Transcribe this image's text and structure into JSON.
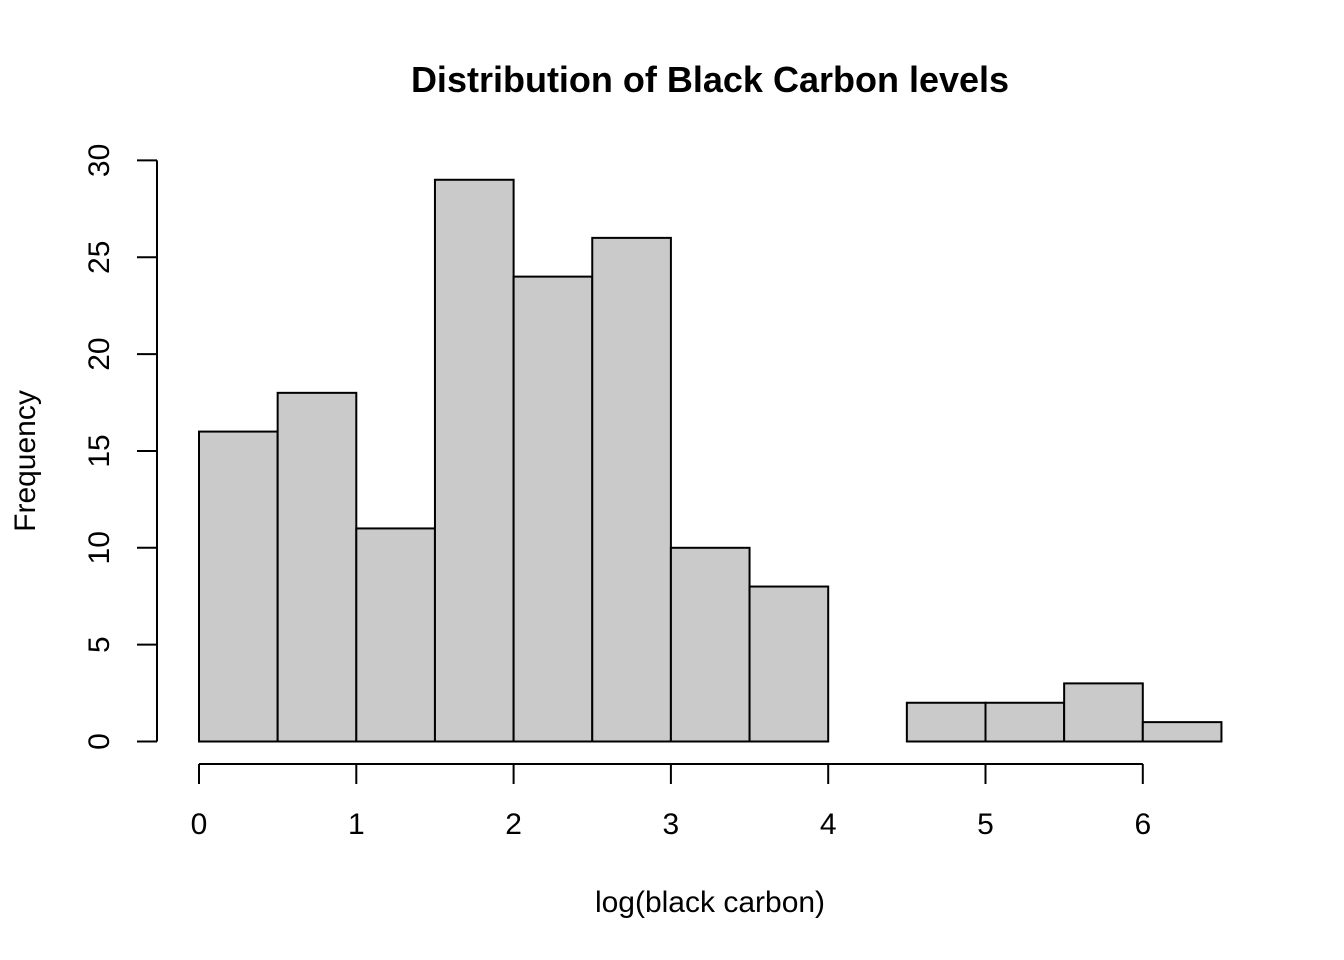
{
  "chart_data": {
    "type": "bar",
    "title": "Distribution of Black Carbon levels",
    "xlabel": "log(black carbon)",
    "ylabel": "Frequency",
    "bins": [
      {
        "start": 0.0,
        "end": 0.5,
        "count": 16
      },
      {
        "start": 0.5,
        "end": 1.0,
        "count": 18
      },
      {
        "start": 1.0,
        "end": 1.5,
        "count": 11
      },
      {
        "start": 1.5,
        "end": 2.0,
        "count": 29
      },
      {
        "start": 2.0,
        "end": 2.5,
        "count": 24
      },
      {
        "start": 2.5,
        "end": 3.0,
        "count": 26
      },
      {
        "start": 3.0,
        "end": 3.5,
        "count": 10
      },
      {
        "start": 3.5,
        "end": 4.0,
        "count": 8
      },
      {
        "start": 4.0,
        "end": 4.5,
        "count": 0
      },
      {
        "start": 4.5,
        "end": 5.0,
        "count": 2
      },
      {
        "start": 5.0,
        "end": 5.5,
        "count": 2
      },
      {
        "start": 5.5,
        "end": 6.0,
        "count": 3
      },
      {
        "start": 6.0,
        "end": 6.5,
        "count": 1
      }
    ],
    "xlim": [
      0,
      6.5
    ],
    "ylim": [
      0,
      30
    ],
    "xticks": [
      "0",
      "1",
      "2",
      "3",
      "4",
      "5",
      "6"
    ],
    "yticks": [
      "0",
      "5",
      "10",
      "15",
      "20",
      "25",
      "30"
    ],
    "bar_color": "#cacaca",
    "grid": false,
    "legend": "none"
  }
}
